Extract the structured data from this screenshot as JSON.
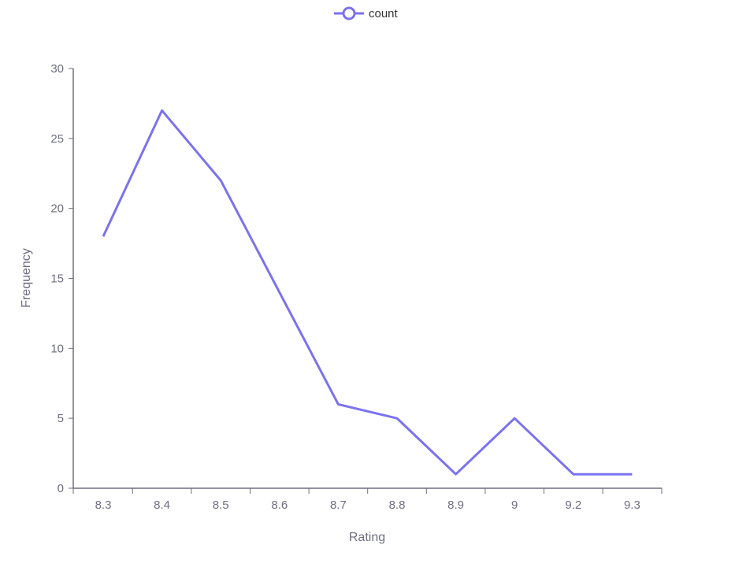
{
  "chart_data": {
    "type": "line",
    "categories": [
      "8.3",
      "8.4",
      "8.5",
      "8.6",
      "8.7",
      "8.8",
      "8.9",
      "9",
      "9.2",
      "9.3"
    ],
    "series": [
      {
        "name": "count",
        "values": [
          18,
          27,
          22,
          14,
          6,
          5,
          1,
          5,
          1,
          1
        ],
        "color": "#7b72f0"
      }
    ],
    "xlabel": "Rating",
    "ylabel": "Frequency",
    "ylim": [
      0,
      30
    ],
    "yticks": [
      0,
      5,
      10,
      15,
      20,
      25,
      30
    ],
    "grid": false,
    "legend_position": "top-center"
  },
  "colors": {
    "axis": "#6e6e80",
    "series": "#7b72f0"
  }
}
